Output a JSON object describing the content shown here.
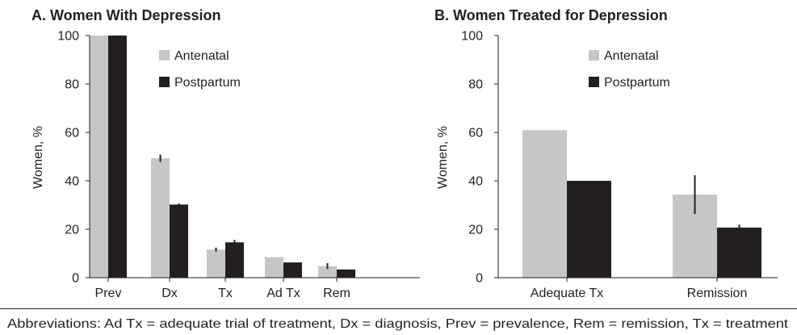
{
  "chart_data": [
    {
      "type": "bar",
      "title": "A. Women With Depression",
      "ylabel": "Women, %",
      "xlabel": "",
      "ylim": [
        0,
        100
      ],
      "yticks": [
        0,
        20,
        40,
        60,
        80,
        100
      ],
      "categories": [
        "Prev",
        "Dx",
        "Tx",
        "Ad Tx",
        "Rem"
      ],
      "series": [
        {
          "name": "Antenatal",
          "color": "#c4c6c8",
          "values": [
            100,
            49.3,
            11.6,
            8.5,
            4.8
          ],
          "errors": [
            null,
            1.5,
            0.8,
            null,
            1.2
          ]
        },
        {
          "name": "Postpartum",
          "color": "#231f20",
          "values": [
            100,
            30.2,
            14.6,
            6.3,
            3.4
          ],
          "errors": [
            null,
            0.5,
            1.0,
            null,
            null
          ]
        }
      ],
      "legend": "top-right",
      "grid": false
    },
    {
      "type": "bar",
      "title": "B. Women Treated for Depression",
      "ylabel": "Women, %",
      "xlabel": "",
      "ylim": [
        0,
        100
      ],
      "yticks": [
        0,
        20,
        40,
        60,
        80,
        100
      ],
      "categories": [
        "Adequate Tx",
        "Remission"
      ],
      "series": [
        {
          "name": "Antenatal",
          "color": "#c4c6c8",
          "values": [
            60.9,
            34.3
          ],
          "errors": [
            null,
            8.0
          ]
        },
        {
          "name": "Postpartum",
          "color": "#231f20",
          "values": [
            40.0,
            20.7
          ],
          "errors": [
            null,
            1.2
          ]
        }
      ],
      "legend": "top-right",
      "grid": false
    }
  ],
  "footnote": "Abbreviations: Ad Tx = adequate trial of treatment, Dx = diagnosis, Prev = prevalence, Rem = remission, Tx = treatment"
}
